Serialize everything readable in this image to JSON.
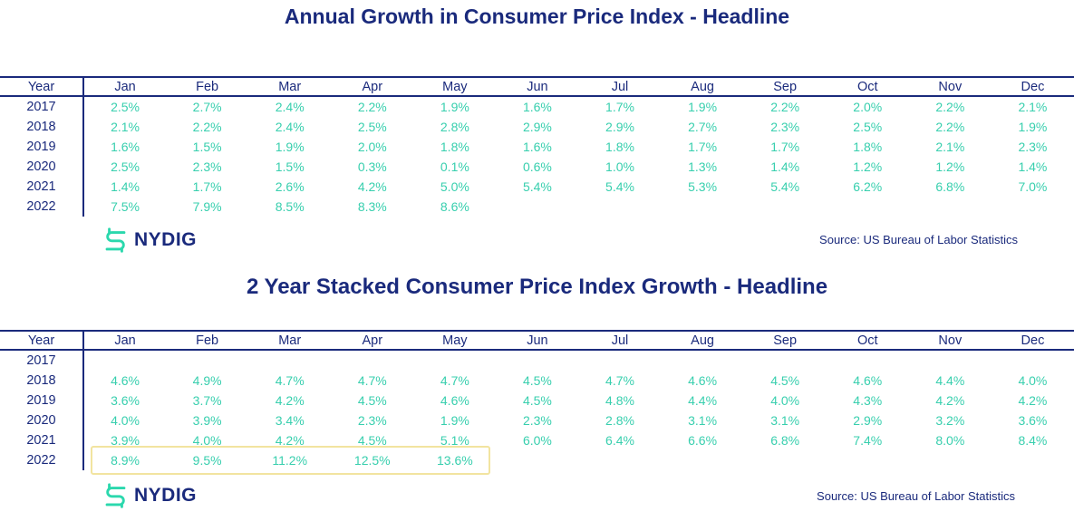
{
  "colors": {
    "navy": "#1a2a7c",
    "teal": "#38cfae",
    "logo_teal": "#2bd8ad",
    "highlight_border": "#f2e4a0"
  },
  "logo": {
    "text": "NYDIG",
    "icon": "nydig-dollar-mark"
  },
  "source": {
    "label": "Source: US Bureau of Labor Statistics"
  },
  "chart_data": [
    {
      "type": "table",
      "title": "Annual Growth in Consumer Price Index - Headline",
      "columns": [
        "Year",
        "Jan",
        "Feb",
        "Mar",
        "Apr",
        "May",
        "Jun",
        "Jul",
        "Aug",
        "Sep",
        "Oct",
        "Nov",
        "Dec"
      ],
      "rows": [
        {
          "year": "2017",
          "values": [
            "2.5%",
            "2.7%",
            "2.4%",
            "2.2%",
            "1.9%",
            "1.6%",
            "1.7%",
            "1.9%",
            "2.2%",
            "2.0%",
            "2.2%",
            "2.1%"
          ]
        },
        {
          "year": "2018",
          "values": [
            "2.1%",
            "2.2%",
            "2.4%",
            "2.5%",
            "2.8%",
            "2.9%",
            "2.9%",
            "2.7%",
            "2.3%",
            "2.5%",
            "2.2%",
            "1.9%"
          ]
        },
        {
          "year": "2019",
          "values": [
            "1.6%",
            "1.5%",
            "1.9%",
            "2.0%",
            "1.8%",
            "1.6%",
            "1.8%",
            "1.7%",
            "1.7%",
            "1.8%",
            "2.1%",
            "2.3%"
          ]
        },
        {
          "year": "2020",
          "values": [
            "2.5%",
            "2.3%",
            "1.5%",
            "0.3%",
            "0.1%",
            "0.6%",
            "1.0%",
            "1.3%",
            "1.4%",
            "1.2%",
            "1.2%",
            "1.4%"
          ]
        },
        {
          "year": "2021",
          "values": [
            "1.4%",
            "1.7%",
            "2.6%",
            "4.2%",
            "5.0%",
            "5.4%",
            "5.4%",
            "5.3%",
            "5.4%",
            "6.2%",
            "6.8%",
            "7.0%"
          ]
        },
        {
          "year": "2022",
          "values": [
            "7.5%",
            "7.9%",
            "8.5%",
            "8.3%",
            "8.6%",
            "",
            "",
            "",
            "",
            "",
            "",
            ""
          ]
        }
      ],
      "source": "Source: US Bureau of Labor Statistics"
    },
    {
      "type": "table",
      "title": "2 Year Stacked Consumer Price Index Growth - Headline",
      "columns": [
        "Year",
        "Jan",
        "Feb",
        "Mar",
        "Apr",
        "May",
        "Jun",
        "Jul",
        "Aug",
        "Sep",
        "Oct",
        "Nov",
        "Dec"
      ],
      "rows": [
        {
          "year": "2017",
          "values": [
            "",
            "",
            "",
            "",
            "",
            "",
            "",
            "",
            "",
            "",
            "",
            ""
          ]
        },
        {
          "year": "2018",
          "values": [
            "4.6%",
            "4.9%",
            "4.7%",
            "4.7%",
            "4.7%",
            "4.5%",
            "4.7%",
            "4.6%",
            "4.5%",
            "4.6%",
            "4.4%",
            "4.0%"
          ]
        },
        {
          "year": "2019",
          "values": [
            "3.6%",
            "3.7%",
            "4.2%",
            "4.5%",
            "4.6%",
            "4.5%",
            "4.8%",
            "4.4%",
            "4.0%",
            "4.3%",
            "4.2%",
            "4.2%"
          ]
        },
        {
          "year": "2020",
          "values": [
            "4.0%",
            "3.9%",
            "3.4%",
            "2.3%",
            "1.9%",
            "2.3%",
            "2.8%",
            "3.1%",
            "3.1%",
            "2.9%",
            "3.2%",
            "3.6%"
          ]
        },
        {
          "year": "2021",
          "values": [
            "3.9%",
            "4.0%",
            "4.2%",
            "4.5%",
            "5.1%",
            "6.0%",
            "6.4%",
            "6.6%",
            "6.8%",
            "7.4%",
            "8.0%",
            "8.4%"
          ]
        },
        {
          "year": "2022",
          "values": [
            "8.9%",
            "9.5%",
            "11.2%",
            "12.5%",
            "13.6%",
            "",
            "",
            "",
            "",
            "",
            "",
            ""
          ]
        }
      ],
      "highlight": {
        "year": "2022",
        "columns": [
          "Jan",
          "Feb",
          "Mar",
          "Apr",
          "May"
        ],
        "style": "yellow-outline"
      },
      "source": "Source: US Bureau of Labor Statistics"
    }
  ]
}
